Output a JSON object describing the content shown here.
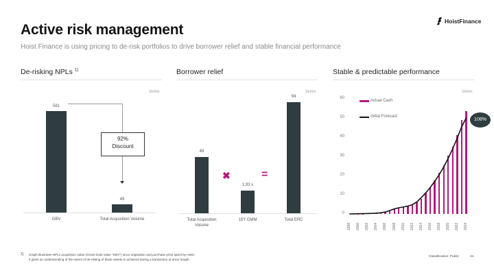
{
  "header": {
    "title": "Active risk management",
    "subtitle": "Hoist Finance is using pricing to de-risk portfolios to drive borrower relief and stable financial performance",
    "logo_text": "HoistFinance"
  },
  "sections": {
    "derisking": {
      "title": "De-risking NPLs",
      "sup": "1)",
      "unit": "SEKbn"
    },
    "relief": {
      "title": "Borrower relief",
      "unit": "SEKbn"
    },
    "performance": {
      "title": "Stable & predictable performance",
      "unit": "SEKbn"
    }
  },
  "derisking_annotation": {
    "line1": "92%",
    "line2": "Discount"
  },
  "relief_ops": {
    "multiply": "✖",
    "equals": "="
  },
  "performance_badge": "108%",
  "legend": {
    "actual": "Actual Cash",
    "forecast": "Initial Forecast"
  },
  "colors": {
    "bar_dark": "#2f3d40",
    "accent": "#b5177a",
    "forecast_line": "#111111"
  },
  "footer": {
    "note_number": "1]",
    "note_line1": "Graph illustrates NPLs acquisition value (Gross book value \"GBV\") since origination and purchase price spent by Hoist.",
    "note_line2": "It gives an understanding of the extent of de-risking of these assets is achieved during a transaction at arms' length.",
    "classification": "Classification: Public",
    "page_number": "44"
  },
  "chart_data": [
    {
      "type": "bar",
      "title": "De-risking NPLs",
      "ylabel": "SEKbn",
      "categories": [
        "GBV",
        "Total Acquisition Volume"
      ],
      "values": [
        581,
        49
      ],
      "value_labels": [
        "581",
        "49"
      ],
      "annotations": [
        "92% Discount"
      ],
      "grid": false
    },
    {
      "type": "bar",
      "title": "Borrower relief",
      "ylabel": "SEKbn",
      "categories": [
        "Total Acquisition Volume",
        "15Y GMM",
        "Total ERC"
      ],
      "values": [
        49,
        1.93,
        94
      ],
      "value_labels": [
        "49",
        "1,93 x",
        "94"
      ],
      "annotations": [
        "Total Acquisition Volume × 15Y GMM = Total ERC"
      ],
      "grid": false
    },
    {
      "type": "bar",
      "title": "Stable & predictable performance",
      "ylabel": "SEKbn",
      "ylim": [
        0,
        60
      ],
      "yticks": [
        0,
        10,
        20,
        30,
        40,
        50,
        60
      ],
      "x": [
        1998,
        1999,
        2000,
        2001,
        2002,
        2003,
        2004,
        2005,
        2006,
        2007,
        2008,
        2009,
        2010,
        2011,
        2012,
        2013,
        2014,
        2015,
        2016,
        2017,
        2018,
        2019,
        2020,
        2021,
        2022,
        2023,
        2024
      ],
      "xtick_labels": [
        "1998",
        "2000",
        "2002",
        "2004",
        "2006",
        "2008",
        "2010",
        "2012",
        "2014",
        "2016",
        "2018",
        "2020",
        "2022",
        "2024"
      ],
      "series": [
        {
          "name": "Actual Cash",
          "type": "bar",
          "values": [
            0,
            0,
            0.1,
            0.1,
            0.2,
            0.3,
            0.4,
            0.6,
            1,
            1.7,
            2.4,
            3,
            3.5,
            4,
            4.8,
            6,
            8,
            11,
            14,
            17.5,
            21.5,
            25.5,
            30.5,
            35,
            41,
            49,
            53.5
          ]
        },
        {
          "name": "Initial Forecast",
          "type": "line",
          "values": [
            0,
            0.05,
            0.1,
            0.15,
            0.2,
            0.3,
            0.4,
            0.6,
            1,
            1.8,
            2.6,
            3.2,
            3.6,
            4.1,
            4.8,
            6.2,
            8.5,
            11,
            13.8,
            17,
            20.5,
            24.5,
            29,
            34,
            39.5,
            45.5,
            50
          ]
        }
      ],
      "annotations": [
        "108%"
      ],
      "legend_position": "top-left",
      "grid": false
    }
  ]
}
